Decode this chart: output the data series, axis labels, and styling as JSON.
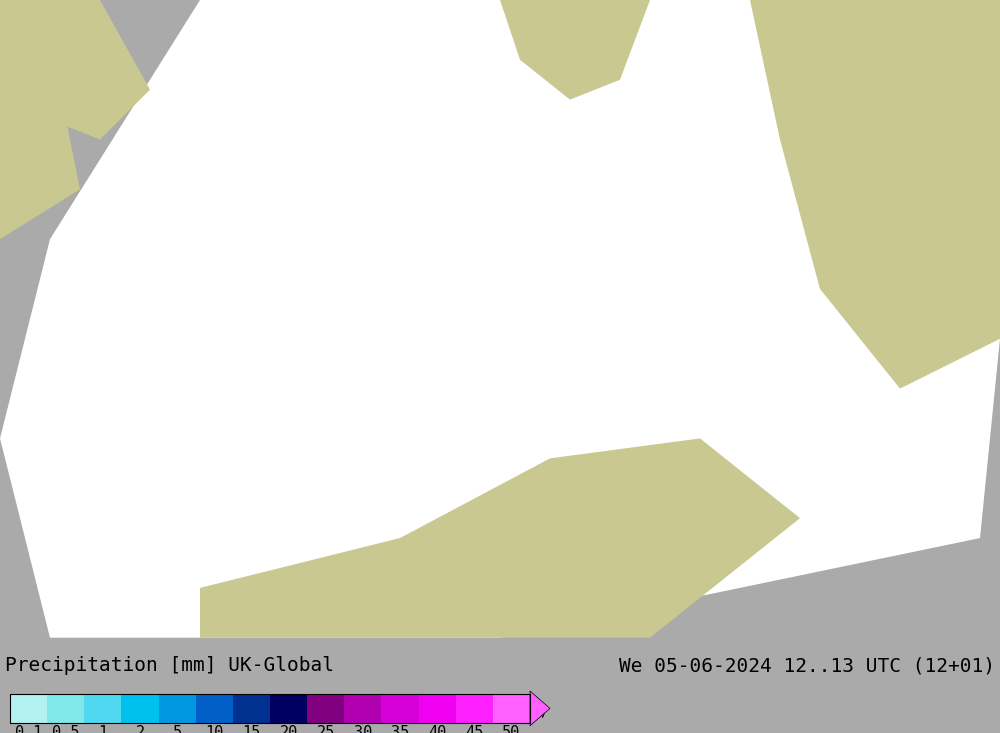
{
  "title_left": "Precipitation [mm] UK-Global",
  "title_right": "We 05-06-2024 12..13 UTC (12+01)",
  "colorbar_values": [
    0.1,
    0.5,
    1,
    2,
    5,
    10,
    15,
    20,
    25,
    30,
    35,
    40,
    45,
    50
  ],
  "colorbar_colors": [
    "#b3f0f0",
    "#80e8e8",
    "#50d8f0",
    "#00c0f0",
    "#0098e0",
    "#0060c8",
    "#003090",
    "#000060",
    "#800080",
    "#b000b0",
    "#d800d8",
    "#f000f0",
    "#ff20ff",
    "#ff60ff"
  ],
  "bg_color": "#aaaaaa",
  "map_bg": "#c8d8a0",
  "sea_color": "#e0f0f0",
  "land_outside_color": "#c8c890",
  "font_size_title": 14,
  "font_size_tick": 11
}
